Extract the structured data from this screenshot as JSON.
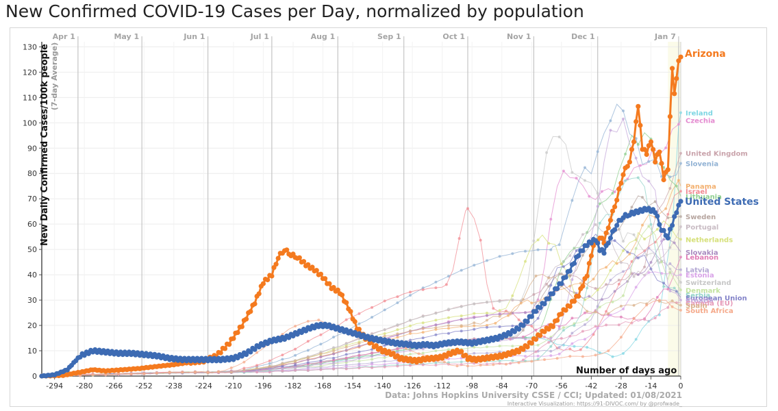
{
  "chart_data": {
    "type": "line",
    "title": "New Confirmed COVID-19 Cases per Day, normalized by population",
    "ylabel": "New Daily Confirmed Cases/100k people",
    "ylabel_note": "(7-day Average)",
    "xlabel": "Number of days ago",
    "xlim": [
      -300,
      0
    ],
    "ylim": [
      0,
      132
    ],
    "x_ticks": [
      "-294",
      "-280",
      "-266",
      "-252",
      "-238",
      "-224",
      "-210",
      "-196",
      "-182",
      "-168",
      "-154",
      "-140",
      "-126",
      "-112",
      "-98",
      "-84",
      "-70",
      "-56",
      "-42",
      "-28",
      "-14",
      "0"
    ],
    "y_ticks": [
      "0",
      "10",
      "20",
      "30",
      "40",
      "50",
      "60",
      "70",
      "80",
      "90",
      "100",
      "110",
      "120",
      "130"
    ],
    "month_markers": [
      {
        "label": "Apr 1",
        "x": -283
      },
      {
        "label": "May 1",
        "x": -253
      },
      {
        "label": "Jun 1",
        "x": -222
      },
      {
        "label": "Jul 1",
        "x": -192
      },
      {
        "label": "Aug 1",
        "x": -161
      },
      {
        "label": "Sep 1",
        "x": -130
      },
      {
        "label": "Oct 1",
        "x": -100
      },
      {
        "label": "Nov 1",
        "x": -69
      },
      {
        "label": "Dec 1",
        "x": -39
      },
      {
        "label": "Jan 7",
        "x": -1
      }
    ],
    "source": "Data: Johns Hopkins University CSSE / CCI; Updated: 01/08/2021",
    "credit": "Interactive Visualization: https://91-DIVOC.com/ by @profwade_",
    "highlight_series": [
      {
        "name": "Arizona",
        "color": "#f47a1f",
        "points": [
          [
            -300,
            0
          ],
          [
            -290,
            0.3
          ],
          [
            -282,
            1.5
          ],
          [
            -276,
            2.5
          ],
          [
            -270,
            2
          ],
          [
            -262,
            2.5
          ],
          [
            -254,
            3
          ],
          [
            -246,
            3.8
          ],
          [
            -238,
            4.5
          ],
          [
            -230,
            5.5
          ],
          [
            -224,
            6
          ],
          [
            -218,
            8
          ],
          [
            -212,
            13
          ],
          [
            -206,
            20
          ],
          [
            -200,
            29
          ],
          [
            -196,
            37
          ],
          [
            -192,
            40
          ],
          [
            -189,
            47
          ],
          [
            -186,
            50
          ],
          [
            -183,
            48
          ],
          [
            -180,
            47
          ],
          [
            -176,
            44
          ],
          [
            -172,
            42
          ],
          [
            -168,
            39
          ],
          [
            -164,
            35
          ],
          [
            -160,
            33
          ],
          [
            -156,
            27
          ],
          [
            -152,
            19
          ],
          [
            -148,
            15
          ],
          [
            -144,
            12
          ],
          [
            -140,
            10
          ],
          [
            -136,
            9
          ],
          [
            -132,
            7
          ],
          [
            -128,
            6.5
          ],
          [
            -124,
            6
          ],
          [
            -120,
            6.8
          ],
          [
            -116,
            7
          ],
          [
            -112,
            7.5
          ],
          [
            -108,
            9
          ],
          [
            -104,
            10
          ],
          [
            -100,
            7
          ],
          [
            -96,
            6.5
          ],
          [
            -92,
            7
          ],
          [
            -88,
            7.5
          ],
          [
            -84,
            8
          ],
          [
            -80,
            9
          ],
          [
            -76,
            10
          ],
          [
            -72,
            12
          ],
          [
            -68,
            15
          ],
          [
            -64,
            18
          ],
          [
            -60,
            20
          ],
          [
            -56,
            25
          ],
          [
            -52,
            28
          ],
          [
            -48,
            32
          ],
          [
            -44,
            40
          ],
          [
            -41,
            52
          ],
          [
            -38,
            55
          ],
          [
            -36,
            53
          ],
          [
            -33,
            62
          ],
          [
            -30,
            70
          ],
          [
            -27,
            80
          ],
          [
            -24,
            85
          ],
          [
            -22,
            93
          ],
          [
            -20,
            107
          ],
          [
            -18,
            90
          ],
          [
            -16,
            88
          ],
          [
            -14,
            93
          ],
          [
            -12,
            85
          ],
          [
            -10,
            89
          ],
          [
            -8,
            78
          ],
          [
            -6,
            82
          ],
          [
            -4,
            122
          ],
          [
            -3,
            112
          ],
          [
            -2,
            118
          ],
          [
            -1,
            125
          ],
          [
            0,
            126
          ]
        ]
      },
      {
        "name": "United States",
        "color": "#3d6bb3",
        "points": [
          [
            -300,
            0
          ],
          [
            -294,
            0.5
          ],
          [
            -288,
            2.5
          ],
          [
            -282,
            8
          ],
          [
            -276,
            10
          ],
          [
            -270,
            9.5
          ],
          [
            -264,
            9
          ],
          [
            -258,
            9
          ],
          [
            -252,
            8.5
          ],
          [
            -246,
            8
          ],
          [
            -240,
            7
          ],
          [
            -234,
            6.5
          ],
          [
            -228,
            6.5
          ],
          [
            -222,
            6.5
          ],
          [
            -216,
            6.5
          ],
          [
            -210,
            7
          ],
          [
            -204,
            9
          ],
          [
            -198,
            12
          ],
          [
            -192,
            14
          ],
          [
            -186,
            15
          ],
          [
            -180,
            17
          ],
          [
            -174,
            19
          ],
          [
            -170,
            20
          ],
          [
            -166,
            20
          ],
          [
            -162,
            19
          ],
          [
            -158,
            18
          ],
          [
            -154,
            17
          ],
          [
            -150,
            16
          ],
          [
            -146,
            15
          ],
          [
            -140,
            14
          ],
          [
            -134,
            13
          ],
          [
            -128,
            12.5
          ],
          [
            -124,
            12
          ],
          [
            -120,
            12.5
          ],
          [
            -116,
            12
          ],
          [
            -110,
            13
          ],
          [
            -104,
            13.5
          ],
          [
            -98,
            13
          ],
          [
            -92,
            14
          ],
          [
            -86,
            15
          ],
          [
            -80,
            17
          ],
          [
            -76,
            19
          ],
          [
            -72,
            22
          ],
          [
            -68,
            26
          ],
          [
            -64,
            29
          ],
          [
            -60,
            33
          ],
          [
            -56,
            37
          ],
          [
            -52,
            42
          ],
          [
            -48,
            48
          ],
          [
            -44,
            52
          ],
          [
            -40,
            54
          ],
          [
            -38,
            50
          ],
          [
            -36,
            49
          ],
          [
            -33,
            55
          ],
          [
            -30,
            60
          ],
          [
            -27,
            63
          ],
          [
            -24,
            64
          ],
          [
            -20,
            65
          ],
          [
            -16,
            66
          ],
          [
            -12,
            65
          ],
          [
            -9,
            58
          ],
          [
            -6,
            55
          ],
          [
            -4,
            60
          ],
          [
            -2,
            65
          ],
          [
            0,
            69
          ]
        ]
      }
    ],
    "other_series": [
      {
        "name": "Ireland",
        "color": "#7fd6e3",
        "end": 104,
        "peaks": [
          [
            -70,
            15
          ],
          [
            -50,
            12
          ],
          [
            -30,
            8
          ],
          [
            -10,
            24
          ],
          [
            -4,
            60
          ]
        ]
      },
      {
        "name": "Czechia",
        "color": "#e48bd0",
        "end": 101,
        "peaks": [
          [
            -70,
            25
          ],
          [
            -55,
            80
          ],
          [
            -40,
            70
          ],
          [
            -25,
            78
          ],
          [
            -10,
            90
          ]
        ]
      },
      {
        "name": "United Kingdom",
        "color": "#c9a3ab",
        "end": 88,
        "peaks": [
          [
            -75,
            30
          ],
          [
            -55,
            40
          ],
          [
            -35,
            35
          ],
          [
            -20,
            40
          ],
          [
            -8,
            70
          ]
        ]
      },
      {
        "name": "Slovenia",
        "color": "#91b2d4",
        "end": 84,
        "peaks": [
          [
            -60,
            50
          ],
          [
            -45,
            80
          ],
          [
            -30,
            105
          ],
          [
            -15,
            85
          ],
          [
            -5,
            80
          ]
        ]
      },
      {
        "name": "Panama",
        "color": "#f3b06f",
        "end": 75,
        "peaks": [
          [
            -90,
            20
          ],
          [
            -70,
            30
          ],
          [
            -50,
            35
          ],
          [
            -30,
            45
          ],
          [
            -10,
            65
          ]
        ]
      },
      {
        "name": "Israel",
        "color": "#f28a92",
        "end": 73,
        "peaks": [
          [
            -110,
            35
          ],
          [
            -100,
            65
          ],
          [
            -85,
            25
          ],
          [
            -50,
            10
          ],
          [
            -15,
            50
          ]
        ]
      },
      {
        "name": "Lithuania",
        "color": "#8fcf8f",
        "end": 71,
        "peaks": [
          [
            -70,
            15
          ],
          [
            -50,
            50
          ],
          [
            -35,
            70
          ],
          [
            -20,
            95
          ],
          [
            -8,
            85
          ]
        ]
      },
      {
        "name": "Sweden",
        "color": "#b7a6a0",
        "end": 63,
        "peaks": [
          [
            -80,
            15
          ],
          [
            -55,
            40
          ],
          [
            -35,
            55
          ],
          [
            -18,
            70
          ],
          [
            -6,
            65
          ]
        ]
      },
      {
        "name": "Portugal",
        "color": "#c9bcc4",
        "end": 59,
        "peaks": [
          [
            -80,
            15
          ],
          [
            -55,
            45
          ],
          [
            -40,
            60
          ],
          [
            -20,
            40
          ],
          [
            -5,
            50
          ]
        ]
      },
      {
        "name": "Netherlands",
        "color": "#d6e07a",
        "end": 54,
        "peaks": [
          [
            -85,
            25
          ],
          [
            -65,
            55
          ],
          [
            -45,
            30
          ],
          [
            -20,
            55
          ],
          [
            -8,
            60
          ]
        ]
      },
      {
        "name": "Slovakia",
        "color": "#a98bc0",
        "end": 49,
        "peaks": [
          [
            -70,
            25
          ],
          [
            -55,
            35
          ],
          [
            -40,
            30
          ],
          [
            -20,
            40
          ],
          [
            -6,
            55
          ]
        ]
      },
      {
        "name": "Lebanon",
        "color": "#e07bb5",
        "end": 47,
        "peaks": [
          [
            -80,
            15
          ],
          [
            -60,
            20
          ],
          [
            -40,
            25
          ],
          [
            -20,
            22
          ],
          [
            -6,
            35
          ]
        ]
      },
      {
        "name": "Latvia",
        "color": "#b4a8d4",
        "end": 42,
        "peaks": [
          [
            -60,
            10
          ],
          [
            -45,
            20
          ],
          [
            -30,
            40
          ],
          [
            -15,
            50
          ],
          [
            -5,
            45
          ]
        ]
      },
      {
        "name": "Estonia",
        "color": "#d9a3e8",
        "end": 40,
        "peaks": [
          [
            -60,
            8
          ],
          [
            -45,
            15
          ],
          [
            -30,
            25
          ],
          [
            -15,
            40
          ],
          [
            -5,
            42
          ]
        ]
      },
      {
        "name": "Switzerland",
        "color": "#c7c7c7",
        "end": 37,
        "peaks": [
          [
            -75,
            30
          ],
          [
            -60,
            95
          ],
          [
            -45,
            75
          ],
          [
            -25,
            55
          ],
          [
            -8,
            45
          ]
        ]
      },
      {
        "name": "Denmark",
        "color": "#c4e3a1",
        "end": 34,
        "peaks": [
          [
            -70,
            12
          ],
          [
            -50,
            20
          ],
          [
            -30,
            30
          ],
          [
            -15,
            60
          ],
          [
            -5,
            40
          ]
        ]
      },
      {
        "name": "Serbia",
        "color": "#92d3c9",
        "end": 32,
        "peaks": [
          [
            -70,
            6
          ],
          [
            -50,
            20
          ],
          [
            -35,
            65
          ],
          [
            -20,
            80
          ],
          [
            -6,
            35
          ]
        ]
      },
      {
        "name": "European Union",
        "color": "#8282c8",
        "end": 31,
        "peaks": [
          [
            -70,
            20
          ],
          [
            -55,
            45
          ],
          [
            -40,
            55
          ],
          [
            -20,
            48
          ],
          [
            -5,
            35
          ]
        ]
      },
      {
        "name": "Croatia",
        "color": "#c3a5da",
        "end": 30,
        "peaks": [
          [
            -60,
            15
          ],
          [
            -45,
            50
          ],
          [
            -30,
            100
          ],
          [
            -15,
            80
          ],
          [
            -5,
            35
          ]
        ]
      },
      {
        "name": "Canada (EU)",
        "color": "#e69ab8",
        "end": 29,
        "peaks": [
          [
            -80,
            5
          ],
          [
            -55,
            15
          ],
          [
            -35,
            20
          ],
          [
            -15,
            22
          ],
          [
            -5,
            28
          ]
        ]
      },
      {
        "name": "Spain",
        "color": "#d8b08a",
        "end": 28,
        "peaks": [
          [
            -100,
            20
          ],
          [
            -80,
            25
          ],
          [
            -65,
            40
          ],
          [
            -40,
            25
          ],
          [
            -10,
            30
          ]
        ]
      },
      {
        "name": "South Africa",
        "color": "#f5a98a",
        "end": 26,
        "peaks": [
          [
            -170,
            22
          ],
          [
            -150,
            15
          ],
          [
            -100,
            4
          ],
          [
            -40,
            8
          ],
          [
            -10,
            30
          ]
        ]
      }
    ],
    "legend_names": [
      "Ireland",
      "Czechia",
      "United Kingdom",
      "Slovenia",
      "Panama",
      "Israel",
      "Lithuania",
      "Sweden",
      "Portugal",
      "Netherlands",
      "Slovakia",
      "Lebanon",
      "Latvia",
      "Estonia",
      "Switzerland",
      "Denmark",
      "Serbia",
      "European Union",
      "Croatia",
      "Canada (EU)",
      "Spain",
      "South Africa"
    ]
  }
}
